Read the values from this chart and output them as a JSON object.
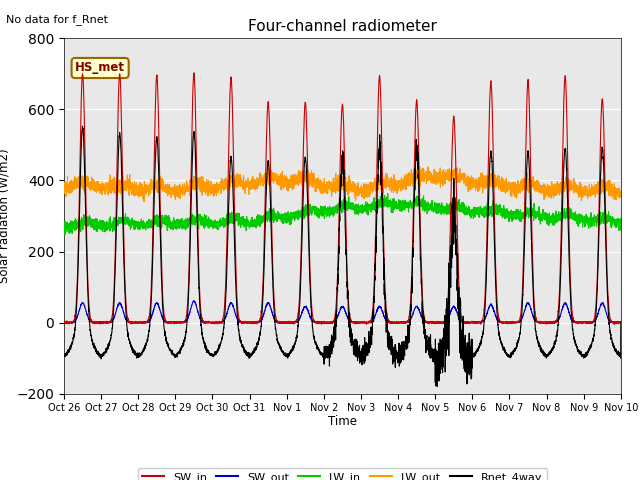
{
  "title": "Four-channel radiometer",
  "top_left_text": "No data for f_Rnet",
  "box_label": "HS_met",
  "ylabel": "Solar radiation (W/m2)",
  "xlabel": "Time",
  "ylim": [
    -200,
    800
  ],
  "background_color": "#e8e8e8",
  "fig_background": "#ffffff",
  "legend": [
    {
      "label": "SW_in",
      "color": "#cc0000"
    },
    {
      "label": "SW_out",
      "color": "#0000cc"
    },
    {
      "label": "LW_in",
      "color": "#00cc00"
    },
    {
      "label": "LW_out",
      "color": "#ff9900"
    },
    {
      "label": "Rnet_4way",
      "color": "#000000"
    }
  ],
  "SW_in_peaks": [
    700,
    700,
    695,
    700,
    690,
    620,
    620,
    615,
    695,
    625,
    580,
    680,
    680,
    695,
    630
  ],
  "SW_out_peaks": [
    55,
    55,
    55,
    60,
    55,
    55,
    45,
    45,
    45,
    45,
    45,
    50,
    55,
    55,
    55
  ],
  "Rnet_peaks": [
    550,
    530,
    520,
    535,
    465,
    455,
    465,
    455,
    490,
    490,
    330,
    480,
    480,
    490,
    490
  ],
  "LW_in_base": 270,
  "LW_out_base": 380,
  "total_days": 15,
  "pts_per_day": 288,
  "x_tick_labels": [
    "Oct 26",
    "Oct 27",
    "Oct 28",
    "Oct 29",
    "Oct 30",
    "Oct 31",
    "Nov 1",
    "Nov 2",
    "Nov 3",
    "Nov 4",
    "Nov 5",
    "Nov 6",
    "Nov 7",
    "Nov 8",
    "Nov 9",
    "Nov 10"
  ],
  "box_label_facecolor": "#ffffcc",
  "box_label_edgecolor": "#996600",
  "box_label_textcolor": "#800000"
}
